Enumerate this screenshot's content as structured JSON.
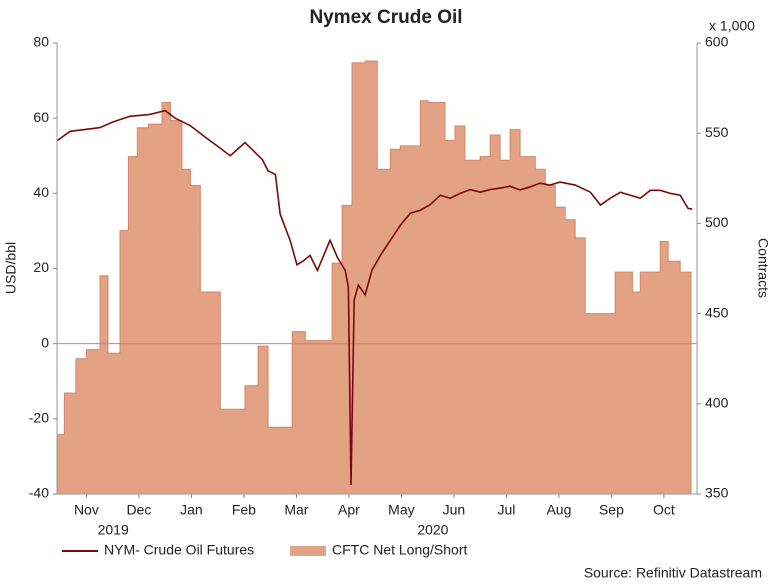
{
  "chart_data": {
    "type": "line",
    "title": "Nymex Crude Oil",
    "y_label": "USD/bbl",
    "y2_label": "Contracts",
    "y2_unit": "x 1,000",
    "source": "Source: Refinitiv Datastream",
    "xlim": [
      -0.06,
      12.13
    ],
    "xticks": [
      {
        "value": 0.5,
        "label": "Nov"
      },
      {
        "value": 1.5,
        "label": "Dec"
      },
      {
        "value": 2.5,
        "label": "Jan"
      },
      {
        "value": 3.5,
        "label": "Feb"
      },
      {
        "value": 4.5,
        "label": "Mar"
      },
      {
        "value": 5.5,
        "label": "Apr"
      },
      {
        "value": 6.5,
        "label": "May"
      },
      {
        "value": 7.5,
        "label": "Jun"
      },
      {
        "value": 8.5,
        "label": "Jul"
      },
      {
        "value": 9.5,
        "label": "Aug"
      },
      {
        "value": 10.5,
        "label": "Sep"
      },
      {
        "value": 11.5,
        "label": "Oct"
      }
    ],
    "year_labels": [
      {
        "value": 1.01,
        "label": "2019"
      },
      {
        "value": 7.1,
        "label": "2020"
      }
    ],
    "ylim": [
      -40,
      80
    ],
    "yticks": [
      -40,
      -20,
      0,
      20,
      40,
      60,
      80
    ],
    "y2lim": [
      350,
      600
    ],
    "y2ticks": [
      350,
      400,
      450,
      500,
      550,
      600
    ],
    "grid": false,
    "zero_line": {
      "value": 0,
      "color": "#e07a7a"
    },
    "legend": "bottom-left",
    "series": [
      {
        "name": "NYM- Crude Oil Futures",
        "color": "#7a0a0a",
        "axis": "y",
        "x": [
          -0.06,
          0.19,
          0.48,
          0.76,
          1.01,
          1.33,
          1.71,
          2.0,
          2.19,
          2.48,
          2.76,
          3.05,
          3.24,
          3.52,
          3.85,
          3.96,
          4.1,
          4.19,
          4.38,
          4.51,
          4.63,
          4.76,
          4.9,
          5.14,
          5.28,
          5.43,
          5.49,
          5.54,
          5.6,
          5.68,
          5.81,
          5.94,
          6.1,
          6.29,
          6.48,
          6.67,
          6.86,
          7.05,
          7.24,
          7.43,
          7.62,
          7.81,
          8.0,
          8.19,
          8.38,
          8.57,
          8.76,
          8.95,
          9.14,
          9.33,
          9.52,
          9.81,
          10.1,
          10.29,
          10.48,
          10.67,
          10.86,
          11.05,
          11.24,
          11.43,
          11.62,
          11.81,
          11.96,
          12.04
        ],
        "values": [
          54,
          56.5,
          57,
          57.5,
          59,
          60.5,
          61,
          62,
          60,
          58,
          55,
          52,
          50,
          53.5,
          49,
          46,
          45,
          34.5,
          27.5,
          21,
          22,
          23.5,
          19.5,
          27.5,
          23,
          19.5,
          15,
          -37.6,
          11.6,
          15.6,
          13,
          19.6,
          23.5,
          27.5,
          31.5,
          34.7,
          35.5,
          37,
          39.5,
          38.7,
          40,
          41,
          40.3,
          41,
          41.4,
          41.9,
          40.9,
          41.7,
          42.7,
          42.2,
          43,
          42.2,
          40.3,
          36.9,
          38.7,
          40.3,
          39.5,
          38.7,
          40.8,
          40.8,
          40,
          39.5,
          36,
          35.8
        ]
      },
      {
        "name": "CFTC Net Long/Short",
        "color": "#e3a283",
        "axis": "y2",
        "type": "step-area",
        "x": [
          -0.06,
          0.08,
          0.3,
          0.5,
          0.76,
          0.91,
          1.14,
          1.3,
          1.47,
          1.68,
          1.94,
          2.1,
          2.32,
          2.48,
          2.67,
          3.05,
          3.52,
          3.77,
          3.96,
          4.42,
          4.67,
          5.18,
          5.37,
          5.56,
          5.81,
          6.04,
          6.29,
          6.48,
          6.86,
          7.01,
          7.33,
          7.52,
          7.71,
          8.0,
          8.19,
          8.38,
          8.57,
          8.76,
          9.05,
          9.24,
          9.43,
          9.62,
          9.81,
          10.0,
          10.57,
          10.9,
          11.05,
          11.43,
          11.58,
          11.81
        ],
        "values": [
          383,
          406,
          425,
          430,
          471,
          428,
          496,
          537,
          553,
          555,
          567,
          557,
          530,
          521,
          462,
          397,
          410,
          432,
          387,
          440,
          435,
          478,
          510,
          589,
          590,
          530,
          541,
          543,
          568,
          567,
          546,
          554,
          535,
          537,
          549,
          535,
          552,
          537,
          530,
          521,
          509,
          502,
          492,
          450,
          473,
          462,
          473,
          490,
          479,
          473
        ]
      }
    ]
  }
}
